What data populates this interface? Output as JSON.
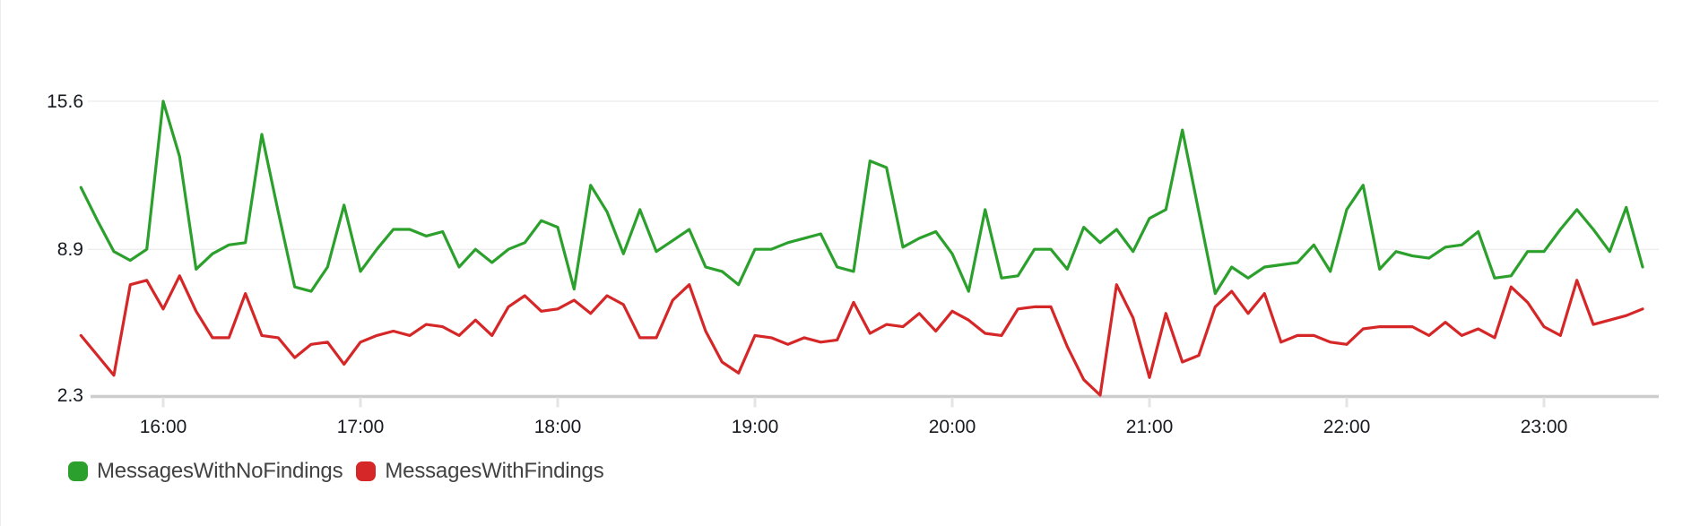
{
  "chart_data": {
    "type": "line",
    "title": "",
    "xlabel": "",
    "ylabel": "",
    "grid": "horizontal",
    "legend_position": "bottom-left",
    "x_axis": {
      "tick_labels": [
        "16:00",
        "17:00",
        "18:00",
        "19:00",
        "20:00",
        "21:00",
        "22:00",
        "23:00"
      ],
      "first_sample_time": "15:35",
      "last_sample_time": "23:30",
      "sample_interval_minutes": 5
    },
    "y_axis": {
      "tick_labels": [
        "15.6",
        "8.9",
        "2.3"
      ],
      "tick_values": [
        15.6,
        8.9,
        2.3
      ],
      "ylim": [
        2.3,
        15.6
      ]
    },
    "series": [
      {
        "name": "MessagesWithNoFindings",
        "color": "#2ca02c",
        "values": [
          11.7,
          10.2,
          8.8,
          8.4,
          8.9,
          15.6,
          13.1,
          8.0,
          8.7,
          9.1,
          9.2,
          14.1,
          10.6,
          7.2,
          7.0,
          8.1,
          10.9,
          7.9,
          8.9,
          9.8,
          9.8,
          9.5,
          9.7,
          8.1,
          8.9,
          8.3,
          8.9,
          9.2,
          10.2,
          9.9,
          7.1,
          11.8,
          10.6,
          8.7,
          10.7,
          8.8,
          9.3,
          9.8,
          8.1,
          7.9,
          7.3,
          8.9,
          8.9,
          9.2,
          9.4,
          9.6,
          8.1,
          7.9,
          12.9,
          12.6,
          9.0,
          9.4,
          9.7,
          8.7,
          7.0,
          10.7,
          7.6,
          7.7,
          8.9,
          8.9,
          8.0,
          9.9,
          9.2,
          9.8,
          8.8,
          10.3,
          10.7,
          14.3,
          10.6,
          6.9,
          8.1,
          7.6,
          8.1,
          8.2,
          8.3,
          9.1,
          7.9,
          10.7,
          11.8,
          8.0,
          8.8,
          8.6,
          8.5,
          9.0,
          9.1,
          9.7,
          7.6,
          7.7,
          8.8,
          8.8,
          9.8,
          10.7,
          9.8,
          8.8,
          10.8,
          8.1
        ]
      },
      {
        "name": "MessagesWithFindings",
        "color": "#d62728",
        "values": [
          5.0,
          4.1,
          3.2,
          7.3,
          7.5,
          6.2,
          7.7,
          6.1,
          4.9,
          4.9,
          6.9,
          5.0,
          4.9,
          4.0,
          4.6,
          4.7,
          3.7,
          4.7,
          5.0,
          5.2,
          5.0,
          5.5,
          5.4,
          5.0,
          5.7,
          5.0,
          6.3,
          6.8,
          6.1,
          6.2,
          6.6,
          6.0,
          6.8,
          6.4,
          4.9,
          4.9,
          6.6,
          7.3,
          5.2,
          3.8,
          3.3,
          5.0,
          4.9,
          4.6,
          4.9,
          4.7,
          4.8,
          6.5,
          5.1,
          5.5,
          5.4,
          6.0,
          5.2,
          6.1,
          5.7,
          5.1,
          5.0,
          6.2,
          6.3,
          6.3,
          4.5,
          3.0,
          2.3,
          7.3,
          5.8,
          3.1,
          6.0,
          3.8,
          4.1,
          6.3,
          7.0,
          6.0,
          6.9,
          4.7,
          5.0,
          5.0,
          4.7,
          4.6,
          5.3,
          5.4,
          5.4,
          5.4,
          5.0,
          5.6,
          5.0,
          5.3,
          4.9,
          7.2,
          6.5,
          5.4,
          5.0,
          7.5,
          5.5,
          5.7,
          5.9,
          6.2
        ]
      }
    ]
  },
  "legend": {
    "items": [
      {
        "label": "MessagesWithNoFindings",
        "color": "#2ca02c"
      },
      {
        "label": "MessagesWithFindings",
        "color": "#d62728"
      }
    ]
  },
  "colors": {
    "background": "#ffffff",
    "gridline": "#e7e7e7",
    "axis_line": "#cdcdcd",
    "axis_text": "#16191f",
    "legend_text": "#424242"
  }
}
